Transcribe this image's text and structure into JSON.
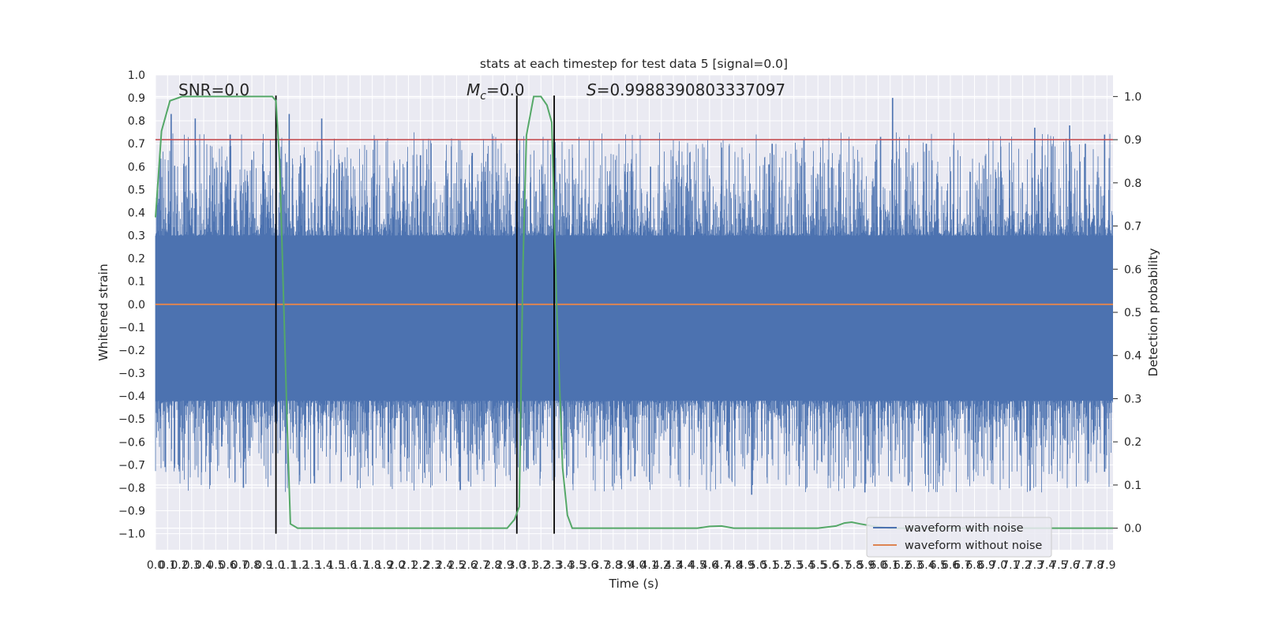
{
  "chart_data": {
    "type": "line",
    "title": "stats at each timestep for test data 5 [signal=0.0]",
    "xlabel": "Time (s)",
    "ylabel": "Whitened strain",
    "ylabel_right": "Detection probability",
    "xlim": [
      0.0,
      7.95
    ],
    "ylim": [
      -1.07,
      1.0
    ],
    "ylim_right": [
      -0.05,
      1.05
    ],
    "grid": true,
    "x_ticks": [
      "0.0",
      "0.1",
      "0.2",
      "0.3",
      "0.4",
      "0.5",
      "0.6",
      "0.7",
      "0.8",
      "0.9",
      "1.0",
      "1.1",
      "1.2",
      "1.3",
      "1.4",
      "1.5",
      "1.6",
      "1.7",
      "1.8",
      "1.9",
      "2.0",
      "2.1",
      "2.2",
      "2.3",
      "2.4",
      "2.5",
      "2.6",
      "2.7",
      "2.8",
      "2.9",
      "3.0",
      "3.1",
      "3.2",
      "3.3",
      "3.4",
      "3.5",
      "3.6",
      "3.7",
      "3.8",
      "3.9",
      "4.0",
      "4.1",
      "4.2",
      "4.3",
      "4.4",
      "4.5",
      "4.6",
      "4.7",
      "4.8",
      "4.9",
      "5.0",
      "5.1",
      "5.2",
      "5.3",
      "5.4",
      "5.5",
      "5.6",
      "5.7",
      "5.8",
      "5.9",
      "6.0",
      "6.1",
      "6.2",
      "6.3",
      "6.4",
      "6.5",
      "6.6",
      "6.7",
      "6.8",
      "6.9",
      "7.0",
      "7.1",
      "7.2",
      "7.3",
      "7.4",
      "7.5",
      "7.6",
      "7.7",
      "7.8",
      "7.9"
    ],
    "y_ticks": [
      "1.0",
      "0.9",
      "0.8",
      "0.7",
      "0.6",
      "0.5",
      "0.4",
      "0.3",
      "0.2",
      "0.1",
      "0.0",
      "−0.1",
      "−0.2",
      "−0.3",
      "−0.4",
      "−0.5",
      "−0.6",
      "−0.7",
      "−0.8",
      "−0.9",
      "−1.0"
    ],
    "y_ticks_right": [
      "1.0",
      "0.9",
      "0.8",
      "0.7",
      "0.6",
      "0.5",
      "0.4",
      "0.3",
      "0.2",
      "0.1",
      "0.0"
    ],
    "annotations": {
      "snr": "SNR=0.0",
      "mc_symbol": "M",
      "mc_sub": "c",
      "mc_value": "=0.0",
      "s_symbol": "S",
      "s_value": "=0.9988390803337097"
    },
    "series": [
      {
        "name": "waveform with noise",
        "color": "#4c72b0",
        "note_envelope": true,
        "spike_peaks": [
          [
            0.03,
            0.46
          ],
          [
            0.13,
            0.83
          ],
          [
            0.33,
            0.81
          ],
          [
            0.55,
            0.6
          ],
          [
            0.62,
            0.74
          ],
          [
            0.8,
            0.63
          ],
          [
            0.9,
            0.58
          ],
          [
            1.09,
            0.62
          ],
          [
            1.2,
            0.6
          ],
          [
            1.38,
            0.81
          ],
          [
            1.11,
            0.83
          ],
          [
            1.55,
            0.62
          ],
          [
            2.2,
            0.65
          ],
          [
            2.63,
            0.66
          ],
          [
            4.11,
            0.6
          ],
          [
            5.12,
            0.7
          ],
          [
            6.02,
            0.73
          ],
          [
            6.12,
            0.9
          ],
          [
            6.4,
            0.7
          ],
          [
            7.3,
            0.77
          ],
          [
            7.59,
            0.78
          ],
          [
            7.72,
            0.7
          ],
          [
            7.88,
            0.74
          ]
        ],
        "trough_peaks": [
          [
            0.08,
            -0.71
          ],
          [
            0.55,
            -0.62
          ],
          [
            0.73,
            -0.8
          ],
          [
            1.32,
            -0.78
          ],
          [
            2.53,
            -0.81
          ],
          [
            3.98,
            -0.75
          ],
          [
            4.95,
            -0.83
          ],
          [
            5.89,
            -0.82
          ],
          [
            6.25,
            -0.79
          ],
          [
            7.88,
            -0.73
          ]
        ]
      },
      {
        "name": "waveform without noise",
        "color": "#dd8452",
        "y": 0.0
      },
      {
        "name": "",
        "color": "#55a868",
        "axis": "right",
        "x": [
          0.0,
          0.05,
          0.12,
          0.22,
          0.4,
          0.7,
          0.9,
          0.97,
          1.0,
          1.03,
          1.1,
          1.12,
          1.18,
          1.3,
          1.6,
          2.0,
          2.4,
          2.7,
          2.85,
          2.92,
          2.98,
          3.02,
          3.05,
          3.08,
          3.14,
          3.2,
          3.25,
          3.29,
          3.33,
          3.38,
          3.42,
          3.46,
          3.5,
          3.6,
          3.8,
          4.2,
          4.5,
          4.6,
          4.7,
          4.8,
          4.95,
          5.2,
          5.5,
          5.65,
          5.72,
          5.78,
          5.85,
          5.95,
          6.1,
          6.3,
          6.6,
          7.0,
          7.5,
          7.95
        ],
        "y": [
          0.72,
          0.92,
          0.99,
          1.0,
          1.0,
          1.0,
          1.0,
          1.0,
          0.99,
          0.85,
          0.18,
          0.01,
          0.0,
          0.0,
          0.0,
          0.0,
          0.0,
          0.0,
          0.0,
          0.0,
          0.02,
          0.05,
          0.6,
          0.91,
          1.0,
          1.0,
          0.98,
          0.94,
          0.52,
          0.14,
          0.03,
          0.0,
          0.0,
          0.0,
          0.0,
          0.0,
          0.0,
          0.004,
          0.005,
          0.0,
          0.0,
          0.0,
          0.0,
          0.005,
          0.012,
          0.014,
          0.01,
          0.005,
          0.0,
          0.0,
          0.0,
          0.0,
          0.0,
          0.0
        ]
      }
    ],
    "threshold": {
      "value_right": 0.9,
      "color": "#c44e52"
    },
    "vertical_lines": [
      {
        "x": 1.0,
        "y_top": 0.91
      },
      {
        "x": 3.0,
        "y_top": 0.91
      },
      {
        "x": 3.31,
        "y_top": 0.91
      }
    ],
    "legend": {
      "placement": "lower right",
      "entries": [
        "waveform with noise",
        "waveform without noise"
      ]
    }
  }
}
